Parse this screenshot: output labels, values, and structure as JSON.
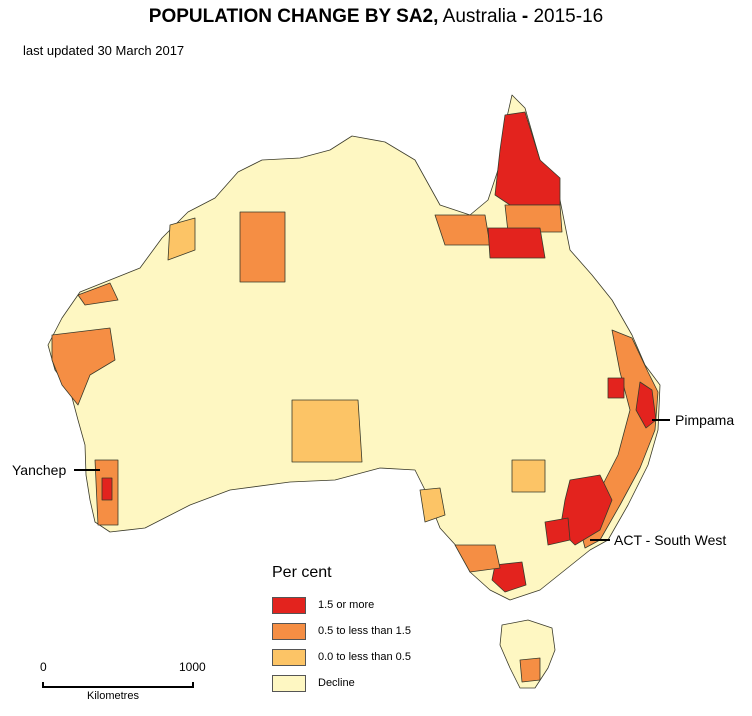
{
  "title": {
    "bold": "POPULATION CHANGE BY SA2,",
    "region": "Australia",
    "dash": "-",
    "period": "2015-16"
  },
  "subtitle": "last updated 30 March 2017",
  "colors": {
    "high": "#e3231e",
    "mid": "#f58e44",
    "low": "#fcc466",
    "decline": "#fef7c2",
    "border": "#3a3a2a"
  },
  "labels": {
    "pimpama": "Pimpama",
    "yanchep": "Yanchep",
    "act": "ACT - South West"
  },
  "legend": {
    "title": "Per cent",
    "items": [
      {
        "label": "1.5 or more",
        "color": "#e3231e"
      },
      {
        "label": "0.5 to less  than 1.5",
        "color": "#f58e44"
      },
      {
        "label": "0.0 to less  than 0.5",
        "color": "#fcc466"
      },
      {
        "label": "Decline",
        "color": "#fef7c2"
      }
    ]
  },
  "scalebar": {
    "start": "0",
    "end": "1000",
    "unit": "Kilometres"
  }
}
